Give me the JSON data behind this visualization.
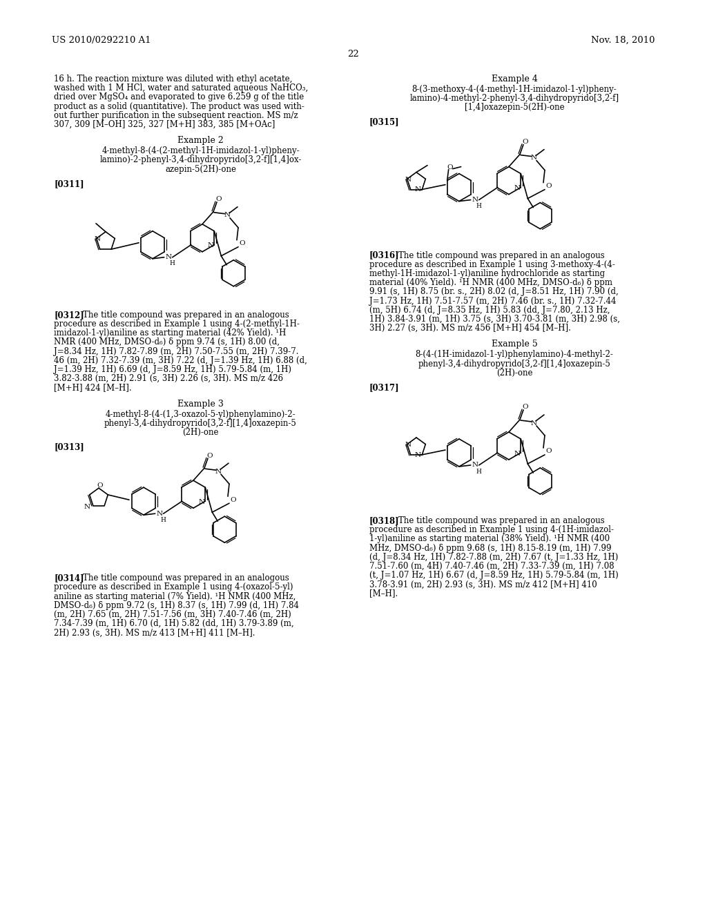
{
  "background_color": "#ffffff",
  "header_left": "US 2010/0292210 A1",
  "header_right": "Nov. 18, 2010",
  "page_number": "22",
  "left_column": {
    "intro_text": [
      "16 h. The reaction mixture was diluted with ethyl acetate,",
      "washed with 1 M HCl, water and saturated aqueous NaHCO₃,",
      "dried over MgSO₄ and evaporated to give 6.259 g of the title",
      "product as a solid (quantitative). The product was used with-",
      "out further purification in the subsequent reaction. MS m/z",
      "307, 309 [M–OH] 325, 327 [M+H] 383, 385 [M+OAc]"
    ],
    "example2_title": "Example 2",
    "example2_compound": [
      "4-methyl-8-(4-(2-methyl-1H-imidazol-1-yl)pheny-",
      "lamino)-2-phenyl-3,4-dihydropyrido[3,2-f][1,4]ox-",
      "azepin-5(2H)-one"
    ],
    "example2_ref": "[0311]",
    "example2_para": [
      "[0312]    The title compound was prepared in an analogous",
      "procedure as described in Example 1 using 4-(2-methyl-1H-",
      "imidazol-1-yl)aniline as starting material (42% Yield). ¹H",
      "NMR (400 MHz, DMSO-d₆) δ ppm 9.74 (s, 1H) 8.00 (d,",
      "J=8.34 Hz, 1H) 7.82-7.89 (m, 2H) 7.50-7.55 (m, 2H) 7.39-7.",
      "46 (m, 2H) 7.32-7.39 (m, 3H) 7.22 (d, J=1.39 Hz, 1H) 6.88 (d,",
      "J=1.39 Hz, 1H) 6.69 (d, J=8.59 Hz, 1H) 5.79-5.84 (m, 1H)",
      "3.82-3.88 (m, 2H) 2.91 (s, 3H) 2.26 (s, 3H). MS m/z 426",
      "[M+H] 424 [M–H]."
    ],
    "example3_title": "Example 3",
    "example3_compound": [
      "4-methyl-8-(4-(1,3-oxazol-5-yl)phenylamino)-2-",
      "phenyl-3,4-dihydropyrido[3,2-f][1,4]oxazepin-5",
      "(2H)-one"
    ],
    "example3_ref": "[0313]",
    "example3_para": [
      "[0314]    The title compound was prepared in an analogous",
      "procedure as described in Example 1 using 4-(oxazol-5-yl)",
      "aniline as starting material (7% Yield). ¹H NMR (400 MHz,",
      "DMSO-d₆) δ ppm 9.72 (s, 1H) 8.37 (s, 1H) 7.99 (d, 1H) 7.84",
      "(m, 2H) 7.65 (m, 2H) 7.51-7.56 (m, 3H) 7.40-7.46 (m, 2H)",
      "7.34-7.39 (m, 1H) 6.70 (d, 1H) 5.82 (dd, 1H) 3.79-3.89 (m,",
      "2H) 2.93 (s, 3H). MS m/z 413 [M+H] 411 [M–H]."
    ]
  },
  "right_column": {
    "example4_title": "Example 4",
    "example4_compound": [
      "8-(3-methoxy-4-(4-methyl-1H-imidazol-1-yl)pheny-",
      "lamino)-4-methyl-2-phenyl-3,4-dihydropyrido[3,2-f]",
      "[1,4]oxazepin-5(2H)-one"
    ],
    "example4_ref": "[0315]",
    "example4_para": [
      "[0316]    The title compound was prepared in an analogous",
      "procedure as described in Example 1 using 3-methoxy-4-(4-",
      "methyl-1H-imidazol-1-yl)aniline hydrochloride as starting",
      "material (40% Yield). ¹H NMR (400 MHz, DMSO-d₆) δ ppm",
      "9.91 (s, 1H) 8.75 (br. s., 2H) 8.02 (d, J=8.51 Hz, 1H) 7.90 (d,",
      "J=1.73 Hz, 1H) 7.51-7.57 (m, 2H) 7.46 (br. s., 1H) 7.32-7.44",
      "(m, 5H) 6.74 (d, J=8.35 Hz, 1H) 5.83 (dd, J=7.80, 2.13 Hz,",
      "1H) 3.84-3.91 (m, 1H) 3.75 (s, 3H) 3.70-3.81 (m, 3H) 2.98 (s,",
      "3H) 2.27 (s, 3H). MS m/z 456 [M+H] 454 [M–H]."
    ],
    "example5_title": "Example 5",
    "example5_compound": [
      "8-(4-(1H-imidazol-1-yl)phenylamino)-4-methyl-2-",
      "phenyl-3,4-dihydropyrido[3,2-f][1,4]oxazepin-5",
      "(2H)-one"
    ],
    "example5_ref": "[0317]",
    "example5_para": [
      "[0318]    The title compound was prepared in an analogous",
      "procedure as described in Example 1 using 4-(1H-imidazol-",
      "1-yl)aniline as starting material (38% Yield). ¹H NMR (400",
      "MHz, DMSO-d₆) δ ppm 9.68 (s, 1H) 8.15-8.19 (m, 1H) 7.99",
      "(d, J=8.34 Hz, 1H) 7.82-7.88 (m, 2H) 7.67 (t, J=1.33 Hz, 1H)",
      "7.51-7.60 (m, 4H) 7.40-7.46 (m, 2H) 7.33-7.39 (m, 1H) 7.08",
      "(t, J=1.07 Hz, 1H) 6.67 (d, J=8.59 Hz, 1H) 5.79-5.84 (m, 1H)",
      "3.78-3.91 (m, 2H) 2.93 (s, 3H). MS m/z 412 [M+H] 410",
      "[M–H]."
    ]
  }
}
